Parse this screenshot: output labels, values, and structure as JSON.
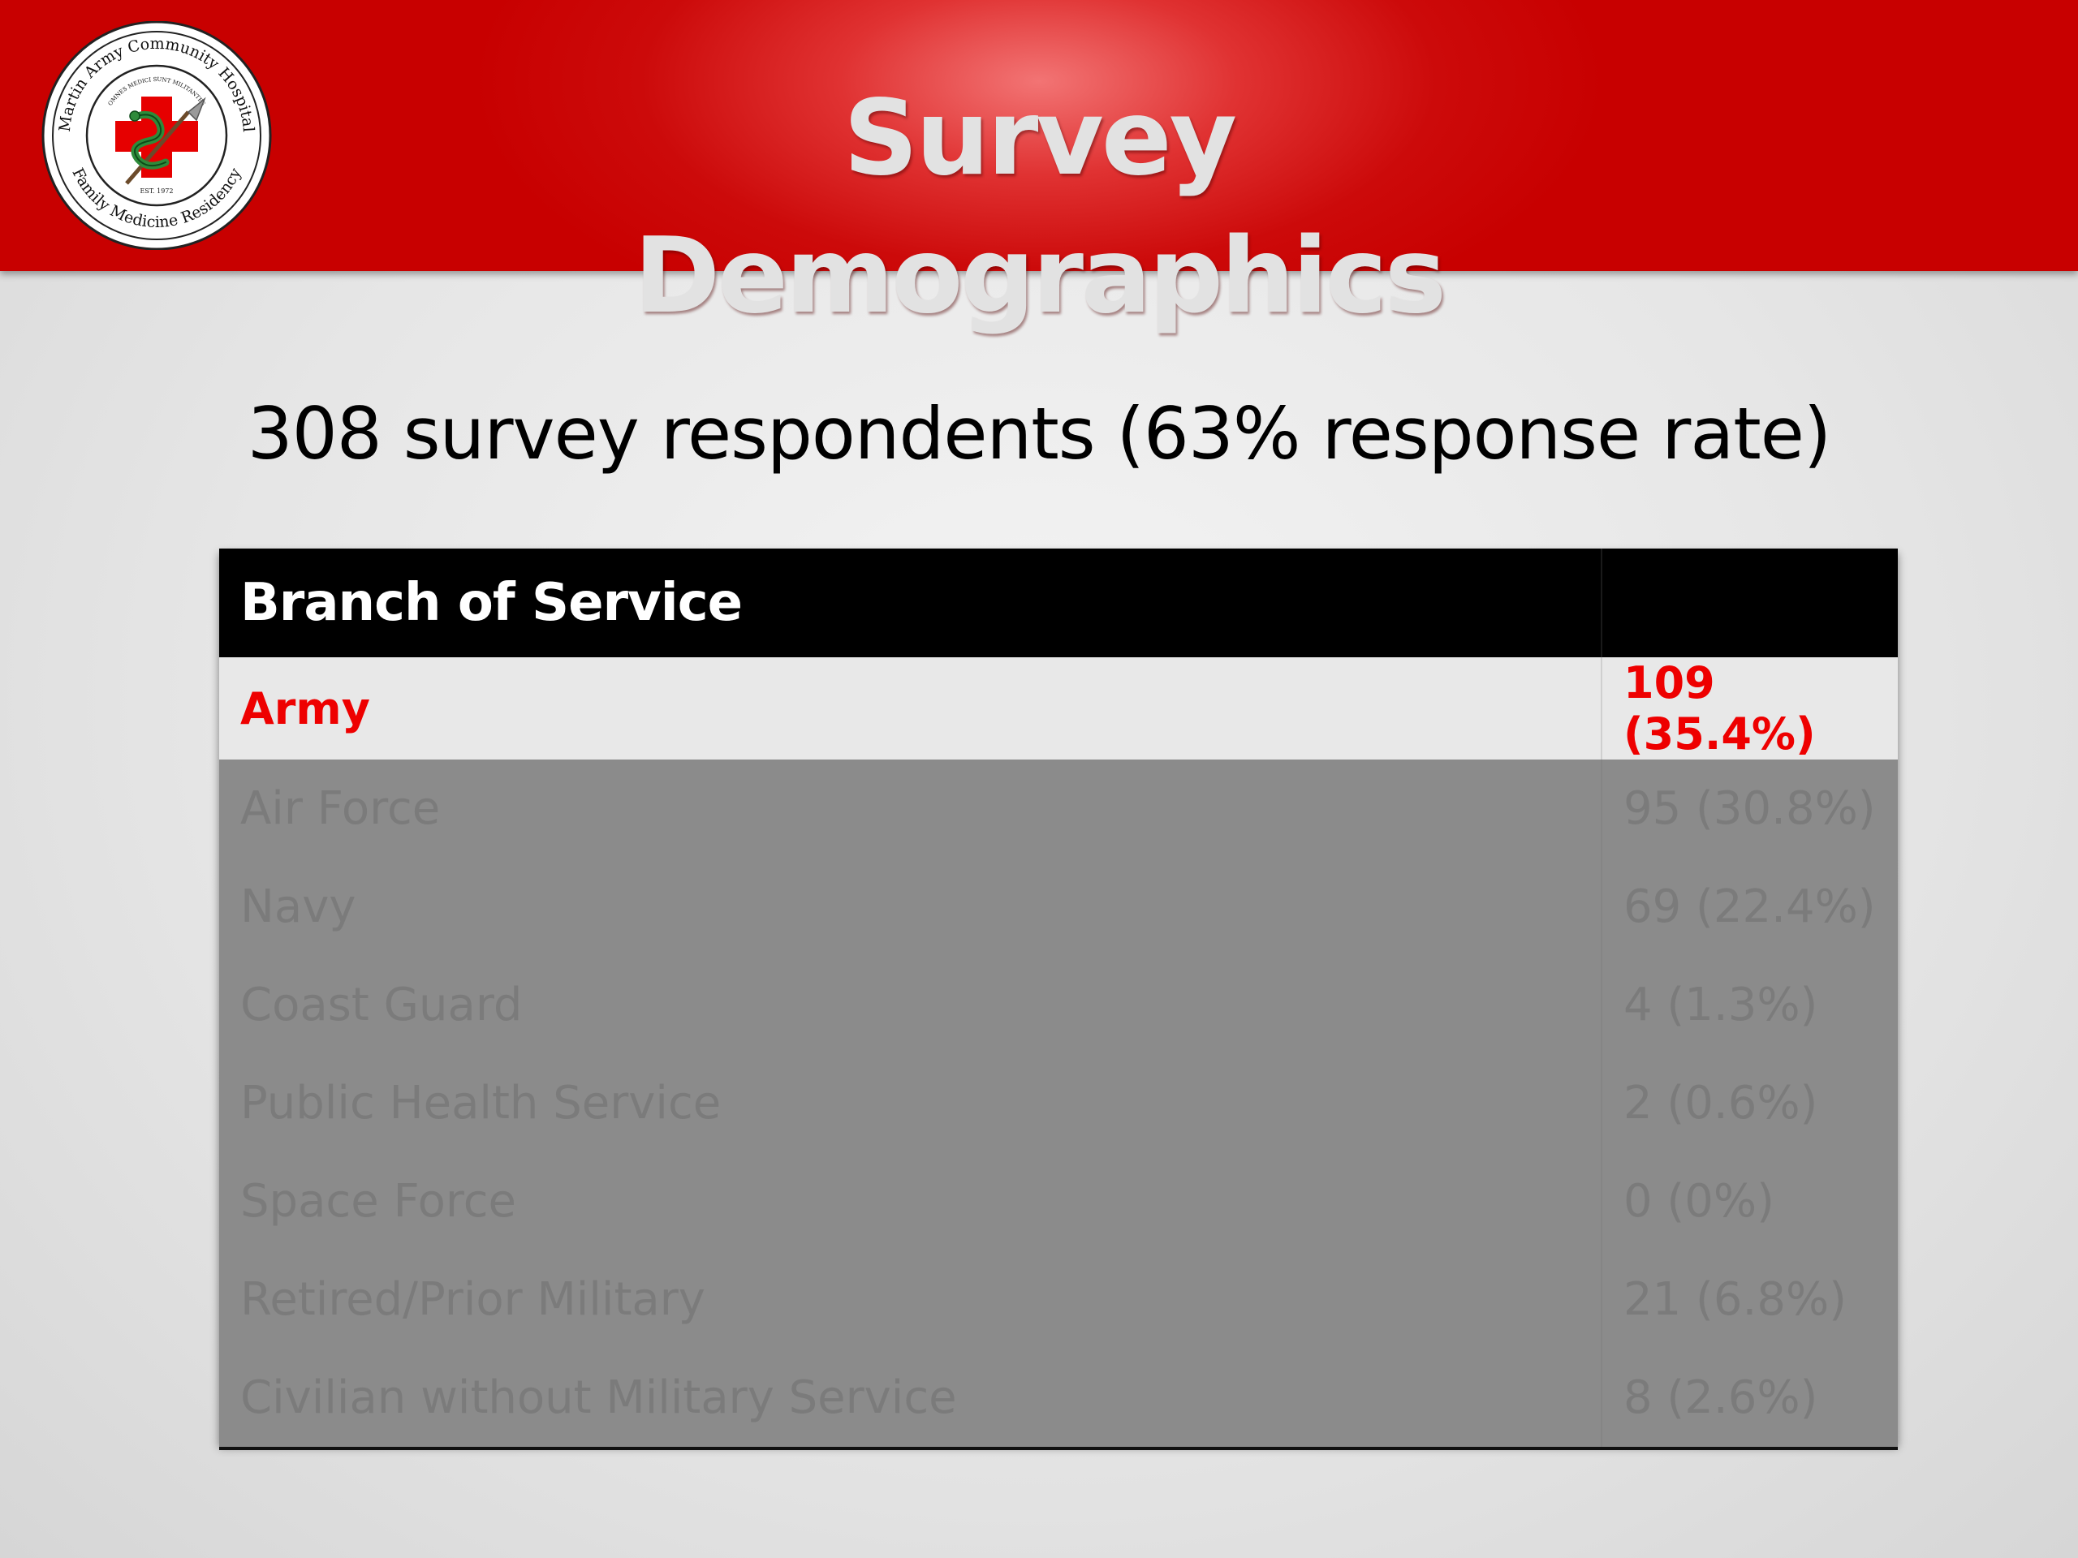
{
  "header": {
    "title": "Survey Demographics",
    "logo": {
      "ring_text_top": "Martin Army Community Hospital",
      "ring_text_bottom": "Family Medicine Residency",
      "motto": "OMNES MEDICI SUNT MILITANTES",
      "est": "EST. 1972"
    }
  },
  "subtitle": "308 survey respondents (63% response rate)",
  "table": {
    "header": [
      "Branch of Service",
      ""
    ],
    "highlighted_row": {
      "label": "Army",
      "value": "109 (35.4%)"
    },
    "rows": [
      {
        "label": "Air Force",
        "value": "95 (30.8%)"
      },
      {
        "label": "Navy",
        "value": "69 (22.4%)"
      },
      {
        "label": "Coast Guard",
        "value": "4 (1.3%)"
      },
      {
        "label": "Public Health Service",
        "value": "2 (0.6%)"
      },
      {
        "label": "Space Force",
        "value": "0 (0%)"
      },
      {
        "label": "Retired/Prior Military",
        "value": "21 (6.8%)"
      },
      {
        "label": "Civilian without Military Service",
        "value": "8 (2.6%)"
      }
    ]
  },
  "colors": {
    "header_red": "#c80000",
    "highlight_text": "#ee0000",
    "dim_row_bg": "#8b8b8b"
  }
}
